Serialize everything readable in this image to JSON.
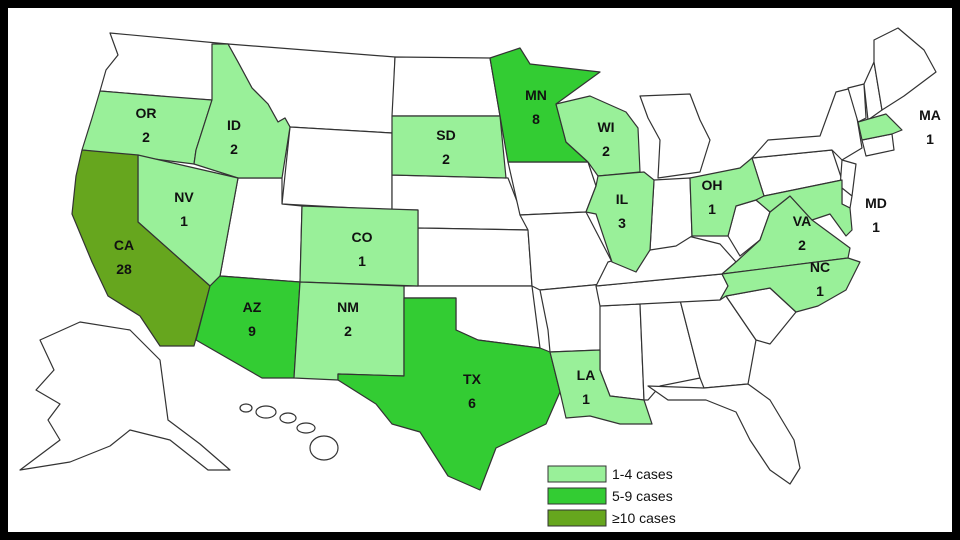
{
  "colors": {
    "low": "#99F099",
    "mid": "#33CC33",
    "high": "#66A61E",
    "none": "#FFFFFF",
    "stroke": "#333333"
  },
  "legend": [
    {
      "label": "1-4 cases",
      "level": "low"
    },
    {
      "label": "5-9 cases",
      "level": "mid"
    },
    {
      "label": "≥10 cases",
      "level": "high"
    }
  ],
  "states": [
    {
      "abbr": "OR",
      "cases": "2",
      "level": "low"
    },
    {
      "abbr": "ID",
      "cases": "2",
      "level": "low"
    },
    {
      "abbr": "NV",
      "cases": "1",
      "level": "low"
    },
    {
      "abbr": "CA",
      "cases": "28",
      "level": "high"
    },
    {
      "abbr": "AZ",
      "cases": "9",
      "level": "mid"
    },
    {
      "abbr": "CO",
      "cases": "1",
      "level": "low"
    },
    {
      "abbr": "NM",
      "cases": "2",
      "level": "low"
    },
    {
      "abbr": "SD",
      "cases": "2",
      "level": "low"
    },
    {
      "abbr": "TX",
      "cases": "6",
      "level": "mid"
    },
    {
      "abbr": "MN",
      "cases": "8",
      "level": "mid"
    },
    {
      "abbr": "WI",
      "cases": "2",
      "level": "low"
    },
    {
      "abbr": "IL",
      "cases": "3",
      "level": "low"
    },
    {
      "abbr": "LA",
      "cases": "1",
      "level": "low"
    },
    {
      "abbr": "OH",
      "cases": "1",
      "level": "low"
    },
    {
      "abbr": "VA",
      "cases": "2",
      "level": "low"
    },
    {
      "abbr": "NC",
      "cases": "1",
      "level": "low"
    },
    {
      "abbr": "MD",
      "cases": "1",
      "level": "low"
    },
    {
      "abbr": "MA",
      "cases": "1",
      "level": "low"
    }
  ]
}
